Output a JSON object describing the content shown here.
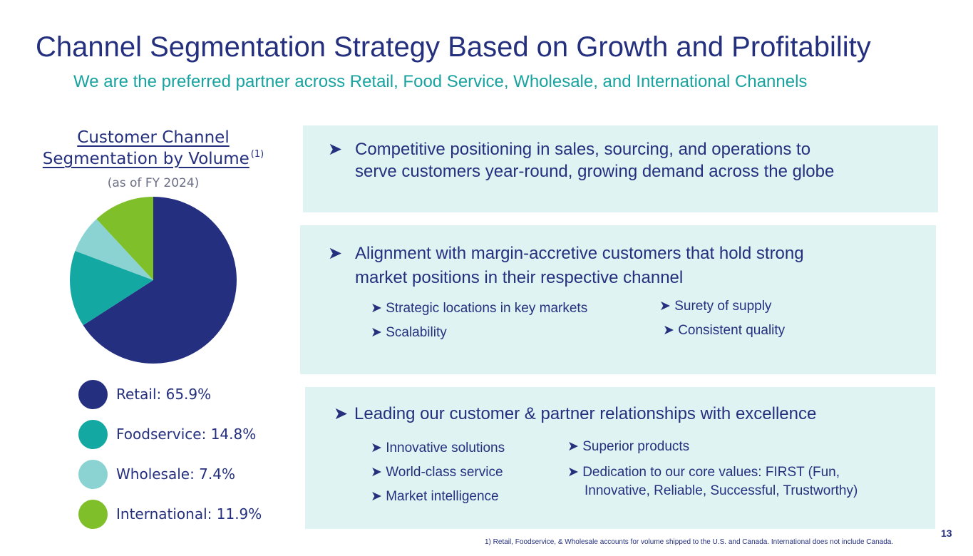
{
  "title": "Channel Segmentation Strategy Based on Growth and Profitability",
  "subtitle": "We are the preferred partner across Retail, Food Service, Wholesale, and International Channels",
  "chart": {
    "title_line1": "Customer Channel",
    "title_line2": "Segmentation by Volume",
    "footnote_ref": "(1)",
    "asof": "(as of FY 2024)"
  },
  "chart_data": {
    "type": "pie",
    "title": "Customer Channel Segmentation by Volume",
    "categories": [
      "Retail",
      "Foodservice",
      "Wholesale",
      "International"
    ],
    "values": [
      65.9,
      14.8,
      7.4,
      11.9
    ],
    "colors": [
      "#252f80",
      "#13a8a2",
      "#8bd3d3",
      "#7fbf2a"
    ],
    "legend_labels": [
      "Retail: 65.9%",
      "Foodservice: 14.8%",
      "Wholesale: 7.4%",
      "International: 11.9%"
    ],
    "legend_position": "bottom"
  },
  "arrow": "➤",
  "panels": {
    "p1": {
      "line1": "Competitive positioning in sales, sourcing, and operations to",
      "line2": "serve customers year-round, growing demand across the globe"
    },
    "p2": {
      "line1": "Alignment with margin-accretive customers that hold strong",
      "line2": "market positions in their respective channel",
      "sub": [
        "➤ Strategic locations in key markets",
        "➤ Scalability",
        "➤ Surety of supply",
        "➤ Consistent quality"
      ]
    },
    "p3": {
      "line1": "Leading our customer & partner relationships with excellence",
      "sub": [
        "➤ Innovative solutions",
        "➤ World-class service",
        "➤ Market intelligence",
        "➤ Superior products",
        "➤ Dedication to our core values: FIRST (Fun,",
        "Innovative, Reliable, Successful, Trustworthy)"
      ]
    }
  },
  "footnote": "1) Retail, Foodservice, & Wholesale accounts for volume shipped to the U.S. and Canada. International does not include Canada.",
  "page_number": "13"
}
